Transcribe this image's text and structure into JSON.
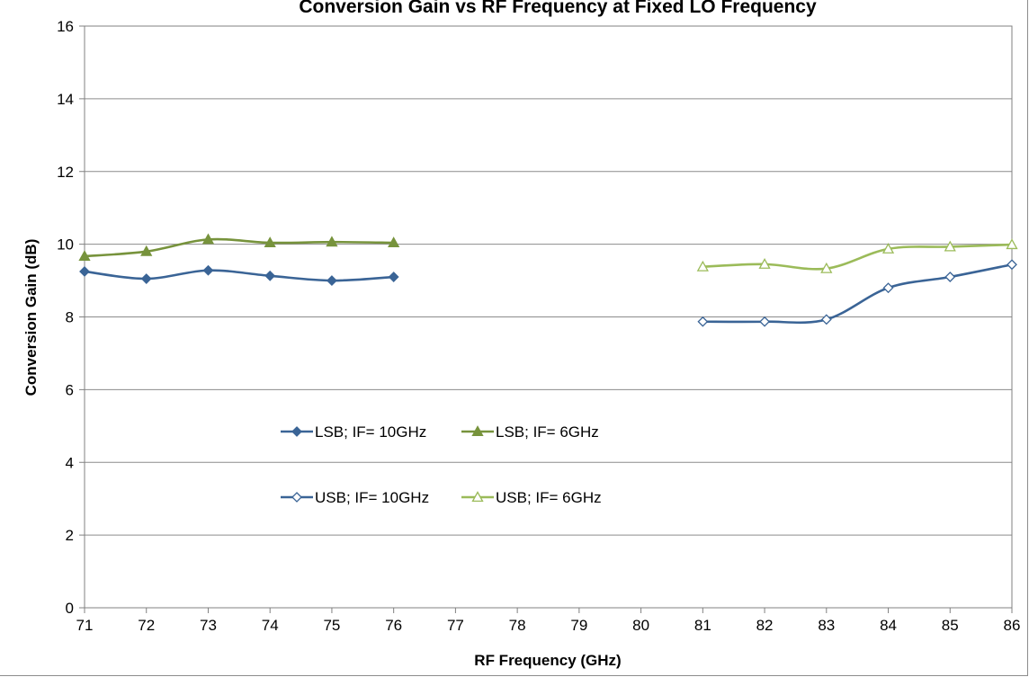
{
  "chart_data": {
    "type": "line",
    "title": "Conversion Gain vs RF Frequency at Fixed LO Frequency",
    "xlabel": "RF Frequency (GHz)",
    "ylabel": "Conversion Gain (dB)",
    "xlim": [
      71,
      86
    ],
    "ylim": [
      0,
      16
    ],
    "xticks": [
      71,
      72,
      73,
      74,
      75,
      76,
      77,
      78,
      79,
      80,
      81,
      82,
      83,
      84,
      85,
      86
    ],
    "yticks": [
      0,
      2,
      4,
      6,
      8,
      10,
      12,
      14,
      16
    ],
    "grid": "horizontal",
    "legend_position": "center-left",
    "series": [
      {
        "name": "LSB; IF= 10GHz",
        "color": "#3a6496",
        "marker": "diamond-filled",
        "x": [
          71,
          72,
          73,
          74,
          75,
          76
        ],
        "y": [
          9.25,
          9.05,
          9.28,
          9.13,
          9.0,
          9.1
        ]
      },
      {
        "name": "LSB; IF= 6GHz",
        "color": "#77933c",
        "marker": "triangle-filled",
        "x": [
          71,
          72,
          73,
          74,
          75,
          76
        ],
        "y": [
          9.67,
          9.8,
          10.13,
          10.04,
          10.06,
          10.04
        ]
      },
      {
        "name": "USB; IF= 10GHz",
        "color": "#3a6496",
        "marker": "diamond-open",
        "x": [
          81,
          82,
          83,
          84,
          85,
          86
        ],
        "y": [
          7.87,
          7.87,
          7.93,
          8.8,
          9.1,
          9.44
        ]
      },
      {
        "name": "USB; IF= 6GHz",
        "color": "#9bbb59",
        "marker": "triangle-open",
        "x": [
          81,
          82,
          83,
          84,
          85,
          86
        ],
        "y": [
          9.38,
          9.45,
          9.33,
          9.87,
          9.93,
          9.99
        ]
      }
    ]
  }
}
